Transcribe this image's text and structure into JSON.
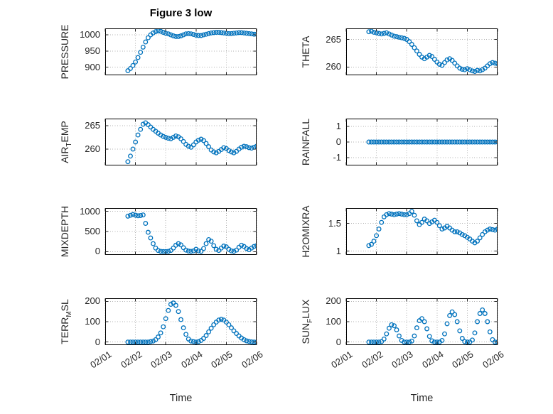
{
  "chart_data": {
    "type": "scatter",
    "title": "Figure 3 low",
    "xlabel": "Time",
    "marker": "o",
    "marker_color": "#0072BD",
    "grid": true,
    "xlim_hours": [
      0,
      120
    ],
    "x_tick_hours": [
      0,
      24,
      48,
      72,
      96,
      120
    ],
    "x_tick_labels": [
      "02/01",
      "02/02",
      "02/03",
      "02/04",
      "02/05",
      "02/06"
    ],
    "x_unit": "hours since 02/01 00:00",
    "x": [
      18,
      20,
      22,
      24,
      26,
      28,
      30,
      32,
      34,
      36,
      38,
      40,
      42,
      44,
      46,
      48,
      50,
      52,
      54,
      56,
      58,
      60,
      62,
      64,
      66,
      68,
      70,
      72,
      74,
      76,
      78,
      80,
      82,
      84,
      86,
      88,
      90,
      92,
      94,
      96,
      98,
      100,
      102,
      104,
      106,
      108,
      110,
      112,
      114,
      116,
      118,
      120
    ],
    "series": [
      {
        "name": "PRESSURE",
        "ylabel_pre": "PRESSURE",
        "ylabel_sub": "",
        "ylabel_post": "",
        "ylim": [
          875,
          1020
        ],
        "ytick_values": [
          900,
          950,
          1000
        ],
        "ytick_labels": [
          "900",
          "950",
          "1000"
        ],
        "values": [
          889,
          896,
          905,
          916,
          930,
          946,
          962,
          978,
          991,
          1000,
          1006,
          1010,
          1012,
          1011,
          1008,
          1005,
          1003,
          1000,
          997,
          995,
          995,
          997,
          1000,
          1003,
          1004,
          1003,
          1001,
          999,
          998,
          998,
          1000,
          1002,
          1004,
          1006,
          1007,
          1008,
          1008,
          1007,
          1006,
          1005,
          1004,
          1004,
          1005,
          1006,
          1007,
          1007,
          1006,
          1005,
          1004,
          1003,
          1002,
          1002
        ]
      },
      {
        "name": "THETA",
        "ylabel_pre": "THETA",
        "ylabel_sub": "",
        "ylabel_post": "",
        "ylim": [
          258.5,
          267
        ],
        "ytick_values": [
          260,
          265
        ],
        "ytick_labels": [
          "260",
          "265"
        ],
        "values": [
          266.4,
          266.5,
          266.3,
          266.2,
          266.1,
          266.0,
          266.1,
          266.2,
          266.0,
          265.8,
          265.6,
          265.5,
          265.4,
          265.3,
          265.2,
          265.0,
          264.6,
          264.1,
          263.5,
          262.9,
          262.3,
          261.8,
          261.5,
          261.8,
          262.1,
          261.9,
          261.4,
          260.9,
          260.5,
          260.3,
          260.8,
          261.3,
          261.5,
          261.2,
          260.7,
          260.2,
          259.8,
          259.6,
          259.5,
          259.7,
          259.5,
          259.3,
          259.2,
          259.4,
          259.3,
          259.5,
          259.8,
          260.2,
          260.6,
          260.8,
          260.7,
          260.6
        ]
      },
      {
        "name": "AIR_TEMP",
        "ylabel_pre": "AIR",
        "ylabel_sub": "T",
        "ylabel_post": "EMP",
        "ylim": [
          256.5,
          266.5
        ],
        "ytick_values": [
          260,
          265
        ],
        "ytick_labels": [
          "260",
          "265"
        ],
        "values": [
          257.3,
          258.5,
          260.0,
          261.5,
          263.0,
          264.2,
          265.3,
          265.6,
          265.2,
          264.7,
          264.2,
          263.8,
          263.4,
          263.0,
          262.7,
          262.5,
          262.3,
          262.2,
          262.5,
          262.8,
          262.6,
          262.2,
          261.6,
          261.0,
          260.6,
          260.4,
          260.9,
          261.5,
          261.9,
          262.1,
          261.8,
          261.2,
          260.5,
          259.8,
          259.4,
          259.2,
          259.5,
          259.9,
          260.3,
          260.1,
          259.7,
          259.4,
          259.2,
          259.5,
          260.0,
          260.4,
          260.6,
          260.5,
          260.3,
          260.2,
          260.4,
          260.6
        ]
      },
      {
        "name": "RAINFALL",
        "ylabel_pre": "RAINFALL",
        "ylabel_sub": "",
        "ylabel_post": "",
        "ylim": [
          -1.5,
          1.5
        ],
        "ytick_values": [
          -1,
          0,
          1
        ],
        "ytick_labels": [
          "-1",
          "0",
          "1"
        ],
        "values": [
          0,
          0,
          0,
          0,
          0,
          0,
          0,
          0,
          0,
          0,
          0,
          0,
          0,
          0,
          0,
          0,
          0,
          0,
          0,
          0,
          0,
          0,
          0,
          0,
          0,
          0,
          0,
          0,
          0,
          0,
          0,
          0,
          0,
          0,
          0,
          0,
          0,
          0,
          0,
          0,
          0,
          0,
          0,
          0,
          0,
          0,
          0,
          0,
          0,
          0,
          0,
          0
        ]
      },
      {
        "name": "MIXDEPTH",
        "ylabel_pre": "MIXDEPTH",
        "ylabel_sub": "",
        "ylabel_post": "",
        "ylim": [
          -80,
          1080
        ],
        "ytick_values": [
          0,
          500,
          1000
        ],
        "ytick_labels": [
          "0",
          "500",
          "1000"
        ],
        "values": [
          880,
          900,
          920,
          905,
          890,
          895,
          910,
          700,
          480,
          340,
          200,
          90,
          30,
          10,
          5,
          5,
          10,
          30,
          90,
          160,
          200,
          170,
          100,
          40,
          15,
          10,
          20,
          60,
          20,
          10,
          80,
          200,
          300,
          260,
          150,
          60,
          30,
          90,
          140,
          120,
          60,
          20,
          10,
          40,
          110,
          160,
          130,
          80,
          50,
          90,
          130,
          150
        ]
      },
      {
        "name": "H2OMIXRA",
        "ylabel_pre": "H2OMIXRA",
        "ylabel_sub": "",
        "ylabel_post": "",
        "ylim": [
          0.93,
          1.78
        ],
        "ytick_values": [
          1,
          1.5
        ],
        "ytick_labels": [
          "1",
          "1.5"
        ],
        "values": [
          1.1,
          1.12,
          1.18,
          1.28,
          1.4,
          1.52,
          1.62,
          1.66,
          1.68,
          1.67,
          1.66,
          1.67,
          1.68,
          1.67,
          1.66,
          1.66,
          1.68,
          1.72,
          1.65,
          1.55,
          1.48,
          1.52,
          1.58,
          1.55,
          1.5,
          1.53,
          1.56,
          1.52,
          1.46,
          1.4,
          1.42,
          1.45,
          1.42,
          1.38,
          1.35,
          1.35,
          1.33,
          1.3,
          1.28,
          1.25,
          1.22,
          1.18,
          1.15,
          1.18,
          1.24,
          1.3,
          1.35,
          1.38,
          1.4,
          1.39,
          1.38,
          1.4
        ]
      },
      {
        "name": "TERR_MSL",
        "ylabel_pre": "TERR",
        "ylabel_sub": "M",
        "ylabel_post": "SL",
        "ylim": [
          -15,
          215
        ],
        "ytick_values": [
          0,
          100,
          200
        ],
        "ytick_labels": [
          "0",
          "100",
          "200"
        ],
        "values": [
          0,
          0,
          0,
          0,
          0,
          0,
          0,
          0,
          0,
          2,
          5,
          12,
          25,
          45,
          75,
          115,
          155,
          185,
          192,
          180,
          150,
          110,
          70,
          38,
          15,
          5,
          2,
          0,
          2,
          8,
          18,
          32,
          50,
          68,
          85,
          98,
          108,
          112,
          108,
          98,
          85,
          70,
          55,
          42,
          30,
          20,
          12,
          6,
          3,
          1,
          0,
          0
        ]
      },
      {
        "name": "SUN_FLUX",
        "ylabel_pre": "SUN",
        "ylabel_sub": "F",
        "ylabel_post": "LUX",
        "ylim": [
          -15,
          215
        ],
        "ytick_values": [
          0,
          100,
          200
        ],
        "ytick_labels": [
          "0",
          "100",
          "200"
        ],
        "values": [
          0,
          0,
          0,
          0,
          0,
          2,
          15,
          40,
          68,
          85,
          80,
          60,
          30,
          8,
          0,
          0,
          0,
          5,
          30,
          70,
          105,
          115,
          100,
          65,
          28,
          6,
          0,
          0,
          0,
          8,
          40,
          90,
          130,
          148,
          135,
          100,
          55,
          18,
          2,
          0,
          0,
          10,
          45,
          100,
          140,
          158,
          140,
          100,
          50,
          12,
          0,
          0
        ]
      }
    ]
  }
}
